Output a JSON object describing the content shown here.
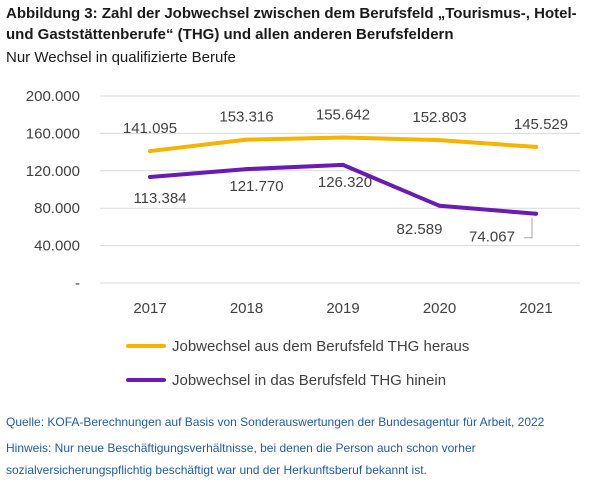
{
  "title": "Abbildung 3: Zahl der Jobwechsel zwischen dem Berufsfeld „Tourismus-, Hotel- und Gaststättenberufe“ (THG) und allen anderen Berufsfeldern",
  "subtitle": "Nur Wechsel in qualifizierte Berufe",
  "colors": {
    "series_out": "#f5b400",
    "series_in": "#6a1bb5",
    "gridline": "#d9d9d9",
    "axis_text": "#404040",
    "note_text": "#1f5ba8"
  },
  "chart_data": {
    "type": "line",
    "title": "",
    "xlabel": "",
    "ylabel": "",
    "categories": [
      "2017",
      "2018",
      "2019",
      "2020",
      "2021"
    ],
    "ylim": [
      0,
      200000
    ],
    "yticks": [
      0,
      40000,
      80000,
      120000,
      160000,
      200000
    ],
    "ytick_labels": [
      "-",
      "40.000",
      "80.000",
      "120.000",
      "160.000",
      "200.000"
    ],
    "grid": true,
    "legend_position": "bottom",
    "series": [
      {
        "name": "Jobwechsel aus dem Berufsfeld THG heraus",
        "values": [
          141095,
          153316,
          155642,
          152803,
          145529
        ],
        "labels": [
          "141.095",
          "153.316",
          "155.642",
          "152.803",
          "145.529"
        ],
        "color": "#f5b400"
      },
      {
        "name": "Jobwechsel in das Berufsfeld THG hinein",
        "values": [
          113384,
          121770,
          126320,
          82589,
          74067
        ],
        "labels": [
          "113.384",
          "121.770",
          "126.320",
          "82.589",
          "74.067"
        ],
        "color": "#6a1bb5"
      }
    ]
  },
  "notes": {
    "source": "Quelle: KOFA-Berechnungen auf Basis von Sonderauswertungen der Bundesagentur für Arbeit, 2022",
    "hint_line1": "Hinweis: Nur neue Beschäftigungsverhältnisse, bei denen die Person auch schon vorher",
    "hint_line2": "sozialversicherungspflichtig beschäftigt war und der Herkunftsberuf bekannt ist."
  }
}
